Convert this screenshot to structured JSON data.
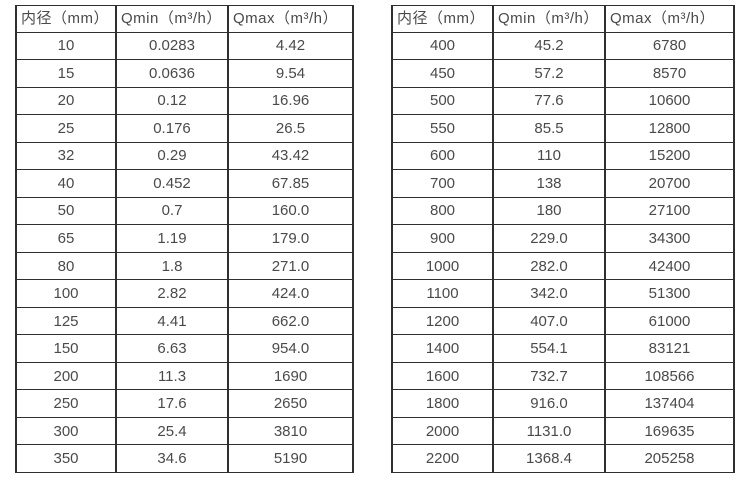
{
  "tables": [
    {
      "name": "flow-table-small-diameters",
      "headers": [
        "内径（mm）",
        "Qmin（m³/h）",
        "Qmax（m³/h）"
      ],
      "rows": [
        [
          "10",
          "0.0283",
          "4.42"
        ],
        [
          "15",
          "0.0636",
          "9.54"
        ],
        [
          "20",
          "0.12",
          "16.96"
        ],
        [
          "25",
          "0.176",
          "26.5"
        ],
        [
          "32",
          "0.29",
          "43.42"
        ],
        [
          "40",
          "0.452",
          "67.85"
        ],
        [
          "50",
          "0.7",
          "160.0"
        ],
        [
          "65",
          "1.19",
          "179.0"
        ],
        [
          "80",
          "1.8",
          "271.0"
        ],
        [
          "100",
          "2.82",
          "424.0"
        ],
        [
          "125",
          "4.41",
          "662.0"
        ],
        [
          "150",
          "6.63",
          "954.0"
        ],
        [
          "200",
          "11.3",
          "1690"
        ],
        [
          "250",
          "17.6",
          "2650"
        ],
        [
          "300",
          "25.4",
          "3810"
        ],
        [
          "350",
          "34.6",
          "5190"
        ]
      ]
    },
    {
      "name": "flow-table-large-diameters",
      "headers": [
        "内径（mm）",
        "Qmin（m³/h）",
        "Qmax（m³/h）"
      ],
      "rows": [
        [
          "400",
          "45.2",
          "6780"
        ],
        [
          "450",
          "57.2",
          "8570"
        ],
        [
          "500",
          "77.6",
          "10600"
        ],
        [
          "550",
          "85.5",
          "12800"
        ],
        [
          "600",
          "110",
          "15200"
        ],
        [
          "700",
          "138",
          "20700"
        ],
        [
          "800",
          "180",
          "27100"
        ],
        [
          "900",
          "229.0",
          "34300"
        ],
        [
          "1000",
          "282.0",
          "42400"
        ],
        [
          "1100",
          "342.0",
          "51300"
        ],
        [
          "1200",
          "407.0",
          "61000"
        ],
        [
          "1400",
          "554.1",
          "83121"
        ],
        [
          "1600",
          "732.7",
          "108566"
        ],
        [
          "1800",
          "916.0",
          "137404"
        ],
        [
          "2000",
          "1131.0",
          "169635"
        ],
        [
          "2200",
          "1368.4",
          "205258"
        ]
      ]
    }
  ],
  "colors": {
    "border": "#2f2f2f",
    "text": "#4a4a4a",
    "background": "#ffffff"
  }
}
